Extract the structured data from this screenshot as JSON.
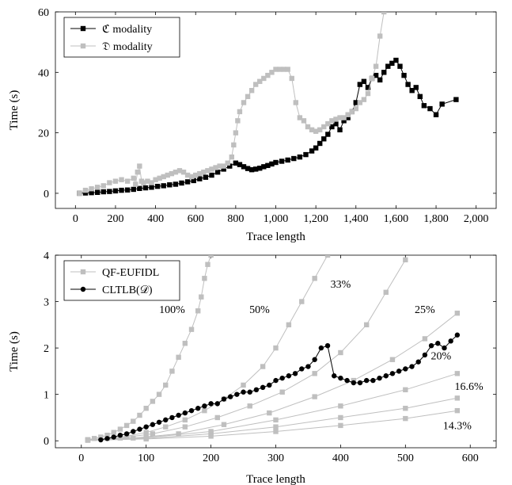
{
  "chart_data": [
    {
      "type": "line",
      "xlabel": "Trace length",
      "ylabel": "Time (s)",
      "xlim": [
        -100,
        2100
      ],
      "ylim": [
        -5,
        60
      ],
      "xticks": [
        0,
        200,
        400,
        600,
        800,
        1000,
        1200,
        1400,
        1600,
        1800,
        2000
      ],
      "xtick_labels": [
        "0",
        "200",
        "400",
        "600",
        "800",
        "1,000",
        "1,200",
        "1,400",
        "1,600",
        "1,800",
        "2,000"
      ],
      "yticks": [
        0,
        20,
        40,
        60
      ],
      "ytick_labels": [
        "0",
        "20",
        "40",
        "60"
      ],
      "legend_position": "top-left",
      "series": [
        {
          "name": "ℭ modality",
          "color": "#000000",
          "marker": "square",
          "x": [
            20,
            50,
            80,
            110,
            140,
            170,
            200,
            230,
            260,
            290,
            320,
            350,
            380,
            410,
            440,
            470,
            500,
            530,
            560,
            590,
            620,
            650,
            680,
            710,
            740,
            770,
            800,
            820,
            840,
            860,
            880,
            900,
            920,
            940,
            960,
            980,
            1000,
            1030,
            1060,
            1090,
            1120,
            1150,
            1180,
            1200,
            1220,
            1240,
            1260,
            1280,
            1300,
            1320,
            1340,
            1360,
            1380,
            1400,
            1420,
            1440,
            1460,
            1480,
            1500,
            1520,
            1540,
            1560,
            1580,
            1600,
            1620,
            1640,
            1660,
            1680,
            1700,
            1720,
            1740,
            1770,
            1800,
            1830,
            1900
          ],
          "y": [
            0,
            0.1,
            0.2,
            0.3,
            0.5,
            0.6,
            0.8,
            1.0,
            1.1,
            1.3,
            1.6,
            1.8,
            2.0,
            2.3,
            2.5,
            2.8,
            3.0,
            3.4,
            3.8,
            4.2,
            4.8,
            5.3,
            6.0,
            7.0,
            8.0,
            9.0,
            10.0,
            9.5,
            8.8,
            8.2,
            7.8,
            8.0,
            8.3,
            8.8,
            9.2,
            9.7,
            10.2,
            10.6,
            11.0,
            11.5,
            12.0,
            12.8,
            14.0,
            15.0,
            16.5,
            18.0,
            19.5,
            22.0,
            23.0,
            21.0,
            24.0,
            25.0,
            27.0,
            30.0,
            36.0,
            37.0,
            35.0,
            38.0,
            39.0,
            37.5,
            40.0,
            42.0,
            43.0,
            44.0,
            42.0,
            39.0,
            36.0,
            34.0,
            35.0,
            32.0,
            29.0,
            28.0,
            26.0,
            29.5,
            31.0
          ]
        },
        {
          "name": "𝔇 modality",
          "color": "#bfbfbf",
          "marker": "square",
          "x": [
            20,
            50,
            80,
            110,
            140,
            170,
            200,
            230,
            260,
            290,
            300,
            310,
            320,
            330,
            340,
            360,
            380,
            400,
            420,
            440,
            460,
            480,
            500,
            520,
            540,
            560,
            580,
            600,
            620,
            640,
            660,
            680,
            700,
            720,
            740,
            760,
            780,
            790,
            800,
            810,
            820,
            840,
            860,
            880,
            900,
            920,
            940,
            960,
            980,
            1000,
            1020,
            1040,
            1060,
            1080,
            1100,
            1120,
            1140,
            1160,
            1180,
            1200,
            1220,
            1240,
            1260,
            1280,
            1300,
            1320,
            1340,
            1360,
            1380,
            1400,
            1420,
            1440,
            1460,
            1480,
            1500,
            1520,
            1540
          ],
          "y": [
            0,
            1.0,
            1.5,
            2.0,
            2.5,
            3.5,
            4.0,
            4.5,
            4.0,
            5.0,
            3.0,
            7.0,
            9.0,
            4.0,
            3.5,
            4.0,
            3.5,
            4.5,
            5.0,
            5.5,
            6.0,
            6.5,
            7.0,
            7.5,
            7.0,
            6.0,
            5.5,
            6.0,
            6.5,
            7.0,
            7.5,
            8.0,
            8.5,
            9.0,
            9.0,
            10.0,
            12.0,
            16.0,
            20.0,
            24.0,
            27.0,
            30.0,
            32.0,
            34.0,
            36.0,
            37.0,
            38.0,
            39.0,
            40.0,
            41.0,
            41.0,
            41.0,
            41.0,
            38.0,
            30.0,
            25.0,
            24.0,
            22.0,
            21.0,
            20.5,
            21.0,
            22.0,
            23.0,
            24.0,
            24.5,
            25.0,
            25.0,
            26.0,
            27.0,
            28.0,
            30.0,
            31.0,
            33.0,
            38.0,
            42.0,
            52.0,
            60.0
          ]
        }
      ]
    },
    {
      "type": "line",
      "xlabel": "Trace length",
      "ylabel": "Time (s)",
      "xlim": [
        -40,
        640
      ],
      "ylim": [
        -0.15,
        4
      ],
      "xticks": [
        0,
        100,
        200,
        300,
        400,
        500,
        600
      ],
      "xtick_labels": [
        "0",
        "100",
        "200",
        "300",
        "400",
        "500",
        "600"
      ],
      "yticks": [
        0,
        1,
        2,
        3,
        4
      ],
      "ytick_labels": [
        "0",
        "1",
        "2",
        "3",
        "4"
      ],
      "legend_position": "top-left",
      "legend": [
        {
          "name": "QF-EUFIDL",
          "color": "#bfbfbf",
          "marker": "square"
        },
        {
          "name": "CLTLB(𝒟)",
          "color": "#000000",
          "marker": "circle"
        }
      ],
      "annotations": [
        {
          "text": "100%",
          "x": 140,
          "y": 2.75
        },
        {
          "text": "50%",
          "x": 275,
          "y": 2.75
        },
        {
          "text": "33%",
          "x": 400,
          "y": 3.3
        },
        {
          "text": "25%",
          "x": 530,
          "y": 2.75
        },
        {
          "text": "20%",
          "x": 555,
          "y": 1.75
        },
        {
          "text": "16.6%",
          "x": 598,
          "y": 1.1
        },
        {
          "text": "14.3%",
          "x": 580,
          "y": 0.25
        }
      ],
      "series": [
        {
          "name": "QF-EUFIDL",
          "label": "100%",
          "color": "#bfbfbf",
          "marker": "square",
          "x": [
            10,
            20,
            30,
            40,
            50,
            60,
            70,
            80,
            90,
            100,
            110,
            120,
            130,
            140,
            150,
            160,
            170,
            180,
            185,
            190,
            195,
            200
          ],
          "y": [
            0.02,
            0.05,
            0.08,
            0.12,
            0.18,
            0.25,
            0.33,
            0.42,
            0.55,
            0.7,
            0.85,
            1.0,
            1.2,
            1.5,
            1.8,
            2.1,
            2.4,
            2.8,
            3.1,
            3.5,
            3.8,
            4.0
          ]
        },
        {
          "name": "QF-EUFIDL",
          "label": "50%",
          "color": "#bfbfbf",
          "marker": "square",
          "x": [
            10,
            40,
            70,
            100,
            130,
            160,
            190,
            220,
            250,
            280,
            300,
            320,
            340,
            360,
            380
          ],
          "y": [
            0.02,
            0.05,
            0.1,
            0.18,
            0.3,
            0.45,
            0.65,
            0.9,
            1.2,
            1.6,
            2.0,
            2.5,
            3.0,
            3.5,
            4.0
          ]
        },
        {
          "name": "QF-EUFIDL",
          "label": "33%",
          "color": "#bfbfbf",
          "marker": "square",
          "x": [
            10,
            60,
            110,
            160,
            210,
            260,
            310,
            360,
            400,
            440,
            470,
            500
          ],
          "y": [
            0.02,
            0.06,
            0.15,
            0.3,
            0.5,
            0.75,
            1.05,
            1.45,
            1.9,
            2.5,
            3.2,
            3.9
          ]
        },
        {
          "name": "QF-EUFIDL",
          "label": "25%",
          "color": "#bfbfbf",
          "marker": "square",
          "x": [
            10,
            80,
            150,
            220,
            290,
            360,
            420,
            480,
            530,
            580
          ],
          "y": [
            0.02,
            0.06,
            0.15,
            0.35,
            0.6,
            0.95,
            1.3,
            1.75,
            2.2,
            2.75
          ]
        },
        {
          "name": "QF-EUFIDL",
          "label": "20%",
          "color": "#bfbfbf",
          "marker": "square",
          "x": [
            10,
            100,
            200,
            300,
            400,
            500,
            580
          ],
          "y": [
            0.02,
            0.07,
            0.2,
            0.45,
            0.75,
            1.1,
            1.45
          ]
        },
        {
          "name": "QF-EUFIDL",
          "label": "16.6%",
          "color": "#bfbfbf",
          "marker": "square",
          "x": [
            10,
            100,
            200,
            300,
            400,
            500,
            580
          ],
          "y": [
            0.02,
            0.05,
            0.15,
            0.3,
            0.5,
            0.7,
            0.92
          ]
        },
        {
          "name": "QF-EUFIDL",
          "label": "14.3%",
          "color": "#bfbfbf",
          "marker": "square",
          "x": [
            10,
            100,
            200,
            300,
            400,
            500,
            580
          ],
          "y": [
            0.01,
            0.04,
            0.1,
            0.2,
            0.33,
            0.48,
            0.65
          ]
        },
        {
          "name": "CLTLB(𝒟)",
          "color": "#000000",
          "marker": "circle",
          "x": [
            30,
            40,
            50,
            60,
            70,
            80,
            90,
            100,
            110,
            120,
            130,
            140,
            150,
            160,
            170,
            180,
            190,
            200,
            210,
            220,
            230,
            240,
            250,
            260,
            270,
            280,
            290,
            300,
            310,
            320,
            330,
            340,
            350,
            360,
            370,
            380,
            390,
            400,
            410,
            420,
            430,
            440,
            450,
            460,
            470,
            480,
            490,
            500,
            510,
            520,
            530,
            540,
            550,
            560,
            570,
            580
          ],
          "y": [
            0.02,
            0.05,
            0.08,
            0.12,
            0.15,
            0.2,
            0.25,
            0.3,
            0.35,
            0.4,
            0.45,
            0.5,
            0.55,
            0.6,
            0.65,
            0.7,
            0.75,
            0.8,
            0.8,
            0.9,
            0.95,
            1.0,
            1.05,
            1.05,
            1.1,
            1.15,
            1.2,
            1.3,
            1.35,
            1.4,
            1.45,
            1.55,
            1.6,
            1.75,
            2.0,
            2.05,
            1.4,
            1.35,
            1.3,
            1.25,
            1.25,
            1.3,
            1.3,
            1.35,
            1.4,
            1.45,
            1.5,
            1.55,
            1.6,
            1.7,
            1.85,
            2.05,
            2.1,
            2.0,
            2.15,
            2.28
          ]
        }
      ]
    }
  ]
}
